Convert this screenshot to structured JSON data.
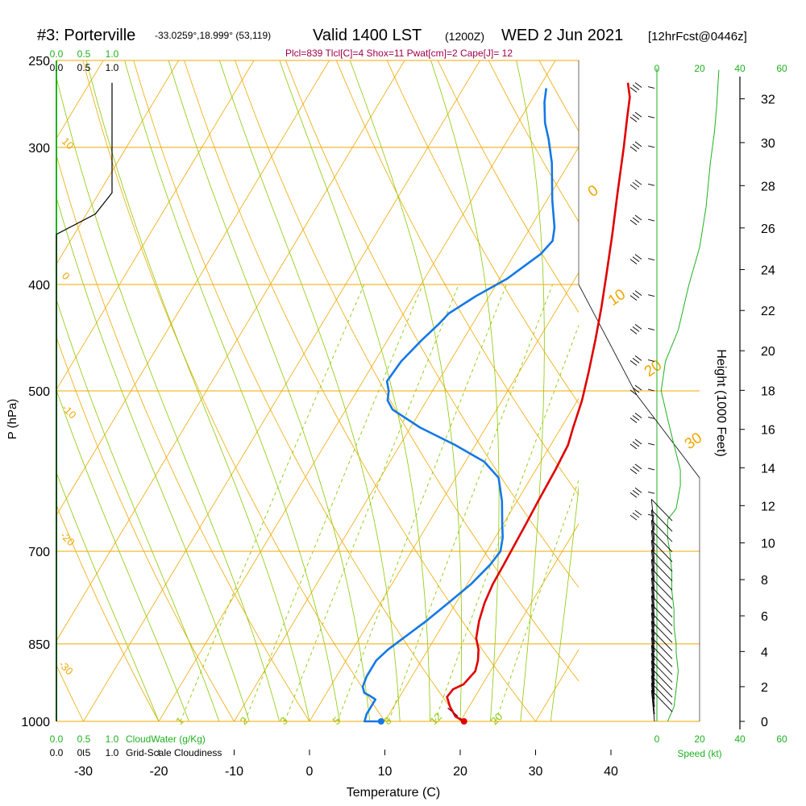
{
  "header": {
    "title_station": "#3: Porterville",
    "title_coords": "-33.0259°,18.999° (53,119)",
    "title_valid": "Valid 1400 LST",
    "title_utc": "(1200Z)",
    "title_date": "WED 2 Jun 2021",
    "title_fcst": "[12hrFcst@0446z]",
    "indices": "Plcl=839 Tlcl[C]=4 Shox=11 Pwat[cm]=2 Cape[J]= 12"
  },
  "axes": {
    "xlabel": "Temperature (C)",
    "ylabel": "P (hPa)",
    "right_label": "Height (1000 Feet)",
    "speed_label": "Speed (kt)",
    "cloudwater_label": "CloudWater (g/Kg)",
    "cloudiness_label": "Grid-Scale Cloudiness"
  },
  "colors": {
    "isotherm": "#f0a800",
    "dry_adiabat": "#f0a800",
    "moist_adiabat": "#8cc800",
    "mixing_ratio": "#8cc800",
    "temperature": "#e00000",
    "dewpoint": "#1478e6",
    "parcel": "#800040",
    "cloud_green": "#20b020",
    "indices": "#a0004a"
  },
  "chart_data": {
    "type": "line",
    "title": "#3: Porterville Valid 1400 LST WED 2 Jun 2021",
    "x_ticks": [
      -30,
      -20,
      -10,
      0,
      10,
      20,
      30,
      40
    ],
    "x_tick_labels": [
      "-30",
      "-20",
      "-10",
      "0",
      "10",
      "20",
      "30",
      "40"
    ],
    "xlim": [
      -33.5,
      45
    ],
    "pressure_levels": [
      1000,
      850,
      700,
      500,
      400,
      300,
      250
    ],
    "pressure_labels": [
      "1000",
      "850",
      "700",
      "500",
      "400",
      "300",
      "250"
    ],
    "height_ticks_kft": [
      0,
      2,
      4,
      6,
      8,
      10,
      12,
      14,
      16,
      18,
      20,
      22,
      24,
      26,
      28,
      30,
      32
    ],
    "height_tick_labels": [
      "0",
      "2",
      "4",
      "6",
      "8",
      "10",
      "12",
      "14",
      "16",
      "18",
      "20",
      "22",
      "24",
      "26",
      "28",
      "30",
      "32"
    ],
    "speed_ticks": [
      "0",
      "20",
      "40",
      "60"
    ],
    "cloud_ticks": [
      "0.0",
      "0.5",
      "1.0"
    ],
    "mixing_ratio_labels": [
      "1",
      "2",
      "3",
      "5",
      "8",
      "12",
      "20"
    ],
    "moist_adiabat_labels": [
      "0",
      "10",
      "20",
      "30"
    ],
    "dry_adiabat_labels": [
      "10",
      "0",
      "-10",
      "-20",
      "-30"
    ],
    "temperature_series": {
      "points": [
        [
          20.5,
          1000
        ],
        [
          19,
          990
        ],
        [
          17.5,
          970
        ],
        [
          16.3,
          950
        ],
        [
          16.5,
          935
        ],
        [
          17.5,
          925
        ],
        [
          18,
          900
        ],
        [
          17.5,
          880
        ],
        [
          16.7,
          860
        ],
        [
          15.5,
          840
        ],
        [
          14.5,
          810
        ],
        [
          13.8,
          780
        ],
        [
          13.4,
          750
        ],
        [
          13.3,
          720
        ],
        [
          13.2,
          700
        ],
        [
          13,
          660
        ],
        [
          12.8,
          630
        ],
        [
          12.6,
          590
        ],
        [
          12.3,
          560
        ],
        [
          11.6,
          540
        ],
        [
          10.6,
          510
        ],
        [
          9.2,
          480
        ],
        [
          7.6,
          450
        ],
        [
          5.8,
          420
        ],
        [
          3.7,
          390
        ],
        [
          1.4,
          360
        ],
        [
          -1.2,
          330
        ],
        [
          -4,
          300
        ],
        [
          -5.9,
          282
        ],
        [
          -7.2,
          270
        ],
        [
          -8.6,
          262
        ]
      ]
    },
    "dewpoint_series": {
      "points": [
        [
          9.5,
          1000
        ],
        [
          7.3,
          1000
        ],
        [
          7,
          985
        ],
        [
          7,
          955
        ],
        [
          6,
          948
        ],
        [
          5,
          942
        ],
        [
          4.3,
          930
        ],
        [
          4,
          910
        ],
        [
          4,
          880
        ],
        [
          4.7,
          860
        ],
        [
          5.8,
          840
        ],
        [
          7.5,
          810
        ],
        [
          9,
          780
        ],
        [
          10.5,
          750
        ],
        [
          11.5,
          720
        ],
        [
          11.8,
          700
        ],
        [
          11,
          680
        ],
        [
          9.8,
          660
        ],
        [
          8,
          630
        ],
        [
          5.7,
          600
        ],
        [
          2.5,
          580
        ],
        [
          -2.7,
          560
        ],
        [
          -8.7,
          540
        ],
        [
          -13.8,
          520
        ],
        [
          -15.2,
          510
        ],
        [
          -15.8,
          500
        ],
        [
          -16.8,
          490
        ],
        [
          -16.5,
          470
        ],
        [
          -15.5,
          450
        ],
        [
          -14.5,
          435
        ],
        [
          -14,
          425
        ],
        [
          -11.8,
          410
        ],
        [
          -9,
          395
        ],
        [
          -6.5,
          375
        ],
        [
          -6,
          365
        ],
        [
          -6.8,
          355
        ],
        [
          -9.3,
          335
        ],
        [
          -12.3,
          310
        ],
        [
          -14.6,
          295
        ],
        [
          -16.4,
          285
        ],
        [
          -18.1,
          273
        ],
        [
          -19,
          265
        ]
      ]
    },
    "parcel_series": {
      "points": [
        [
          20.5,
          1000
        ],
        [
          17,
          970
        ]
      ]
    },
    "surface_temperature": 20.5,
    "surface_dewpoint": 9.5,
    "wind_levels": [
      1000,
      985,
      970,
      955,
      940,
      925,
      910,
      895,
      880,
      865,
      850,
      835,
      820,
      805,
      790,
      775,
      760,
      745,
      730,
      715,
      700,
      685,
      670,
      650,
      620,
      590,
      560,
      530,
      500,
      470,
      440,
      410,
      380,
      350,
      325,
      300,
      282,
      265
    ],
    "wind_speed_profile": [
      [
        5,
        1000
      ],
      [
        8,
        970
      ],
      [
        9,
        935
      ],
      [
        10,
        900
      ],
      [
        9,
        865
      ],
      [
        9,
        850
      ],
      [
        8,
        820
      ],
      [
        8,
        790
      ],
      [
        7,
        760
      ],
      [
        7,
        730
      ],
      [
        6,
        700
      ],
      [
        5,
        680
      ],
      [
        5,
        655
      ],
      [
        9,
        640
      ],
      [
        11,
        610
      ],
      [
        11,
        590
      ],
      [
        8,
        560
      ],
      [
        5,
        530
      ],
      [
        2,
        500
      ],
      [
        4,
        470
      ],
      [
        10,
        440
      ],
      [
        15,
        400
      ],
      [
        20,
        370
      ],
      [
        23,
        340
      ],
      [
        25,
        310
      ],
      [
        27,
        290
      ],
      [
        28,
        275
      ],
      [
        29,
        255
      ]
    ],
    "cloudiness_profile": [
      [
        0,
        1000
      ],
      [
        0,
        360
      ],
      [
        0.7,
        345
      ],
      [
        1.0,
        330
      ],
      [
        1.0,
        300
      ],
      [
        1.0,
        262
      ]
    ],
    "cloud_water_profile": [
      [
        0,
        1000
      ],
      [
        0,
        250
      ]
    ],
    "grid": true
  }
}
